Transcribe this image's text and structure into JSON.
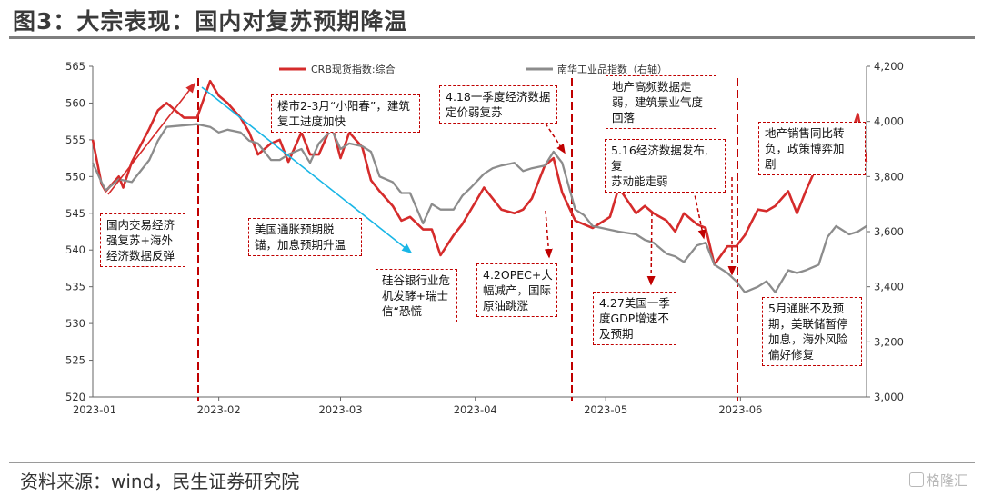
{
  "title": "图3：大宗表现：国内对复苏预期降温",
  "source": "资料来源：wind，民生证券研究院",
  "watermark": "格隆汇",
  "colors": {
    "series1": "#d52b2b",
    "series2": "#8c8c8c",
    "arrow": "#19b6e6",
    "annotation_border": "#c00000"
  },
  "chart_data": {
    "type": "line",
    "x_ticks": [
      "2023-01",
      "2023-02",
      "2023-03",
      "2023-04",
      "2023-05",
      "2023-06"
    ],
    "y_left": {
      "ticks": [
        "565",
        "560",
        "555",
        "550",
        "545",
        "540",
        "535",
        "530",
        "525",
        "520"
      ],
      "ylim": [
        520,
        565
      ]
    },
    "y_right": {
      "ticks": [
        "4,200",
        "4,000",
        "3,800",
        "3,600",
        "3,400",
        "3,200",
        "3,000"
      ],
      "ylim": [
        3000,
        4200
      ]
    },
    "legend": {
      "placement": "top",
      "items": [
        "CRB现货指数:综合",
        "南华工业品指数（右轴）"
      ]
    },
    "series": [
      {
        "name": "CRB现货指数:综合",
        "axis": "left",
        "color": "#d52b2b",
        "x": [
          "2023-01-03",
          "2023-01-05",
          "2023-01-06",
          "2023-01-09",
          "2023-01-10",
          "2023-01-12",
          "2023-01-16",
          "2023-01-18",
          "2023-01-20",
          "2023-01-24",
          "2023-01-27",
          "2023-01-30",
          "2023-02-01",
          "2023-02-03",
          "2023-02-06",
          "2023-02-08",
          "2023-02-10",
          "2023-02-13",
          "2023-02-15",
          "2023-02-17",
          "2023-02-20",
          "2023-02-22",
          "2023-02-24",
          "2023-02-27",
          "2023-03-01",
          "2023-03-03",
          "2023-03-06",
          "2023-03-08",
          "2023-03-10",
          "2023-03-13",
          "2023-03-15",
          "2023-03-17",
          "2023-03-20",
          "2023-03-22",
          "2023-03-24",
          "2023-03-27",
          "2023-03-29",
          "2023-04-03",
          "2023-04-05",
          "2023-04-07",
          "2023-04-10",
          "2023-04-12",
          "2023-04-14",
          "2023-04-17",
          "2023-04-19",
          "2023-04-21",
          "2023-04-24",
          "2023-04-26",
          "2023-04-28",
          "2023-05-02",
          "2023-05-04",
          "2023-05-08",
          "2023-05-10",
          "2023-05-12",
          "2023-05-15",
          "2023-05-17",
          "2023-05-19",
          "2023-05-22",
          "2023-05-24",
          "2023-05-26",
          "2023-05-29",
          "2023-05-31",
          "2023-06-02",
          "2023-06-05",
          "2023-06-07",
          "2023-06-09",
          "2023-06-12",
          "2023-06-14",
          "2023-06-16",
          "2023-06-19",
          "2023-06-21",
          "2023-06-23",
          "2023-06-26",
          "2023-06-28",
          "2023-06-30"
        ],
        "values": [
          555,
          549,
          548,
          550,
          548.5,
          552,
          556.5,
          559,
          560,
          558,
          558,
          563,
          561,
          560,
          558,
          556,
          553,
          554.5,
          555,
          552,
          556,
          553,
          553,
          557,
          552.5,
          556,
          554,
          549.5,
          548,
          546,
          544,
          544.5,
          542.8,
          542.8,
          539.3,
          542,
          543.5,
          548.5,
          547,
          545.5,
          545,
          545.5,
          547,
          551.5,
          552.5,
          547.8,
          544,
          543.5,
          543,
          544.5,
          548.5,
          545,
          546,
          545,
          544,
          542.5,
          545,
          543.5,
          543,
          538,
          540.5,
          540.5,
          542,
          545.5,
          545.3,
          546,
          548,
          545,
          548,
          552,
          554,
          554.5,
          555,
          558.5,
          552
        ]
      },
      {
        "name": "南华工业品指数（右轴）",
        "axis": "right",
        "color": "#8c8c8c",
        "x": [
          "2023-01-03",
          "2023-01-05",
          "2023-01-06",
          "2023-01-09",
          "2023-01-12",
          "2023-01-16",
          "2023-01-18",
          "2023-01-20",
          "2023-01-27",
          "2023-01-30",
          "2023-02-01",
          "2023-02-03",
          "2023-02-06",
          "2023-02-08",
          "2023-02-10",
          "2023-02-13",
          "2023-02-15",
          "2023-02-17",
          "2023-02-20",
          "2023-02-22",
          "2023-02-24",
          "2023-02-27",
          "2023-03-01",
          "2023-03-03",
          "2023-03-06",
          "2023-03-08",
          "2023-03-10",
          "2023-03-13",
          "2023-03-15",
          "2023-03-17",
          "2023-03-20",
          "2023-03-22",
          "2023-03-24",
          "2023-03-27",
          "2023-03-29",
          "2023-03-31",
          "2023-04-03",
          "2023-04-05",
          "2023-04-07",
          "2023-04-10",
          "2023-04-12",
          "2023-04-14",
          "2023-04-17",
          "2023-04-19",
          "2023-04-21",
          "2023-04-24",
          "2023-04-26",
          "2023-04-28",
          "2023-05-04",
          "2023-05-08",
          "2023-05-10",
          "2023-05-12",
          "2023-05-15",
          "2023-05-17",
          "2023-05-19",
          "2023-05-22",
          "2023-05-24",
          "2023-05-26",
          "2023-05-29",
          "2023-05-31",
          "2023-06-02",
          "2023-06-05",
          "2023-06-07",
          "2023-06-09",
          "2023-06-12",
          "2023-06-14",
          "2023-06-16",
          "2023-06-19",
          "2023-06-21",
          "2023-06-23",
          "2023-06-26",
          "2023-06-28",
          "2023-06-30"
        ],
        "values": [
          3850,
          3780,
          3750,
          3790,
          3780,
          3860,
          3930,
          3980,
          3990,
          3980,
          3960,
          3970,
          3960,
          3930,
          3920,
          3860,
          3860,
          3880,
          3900,
          3850,
          3920,
          3970,
          3900,
          3920,
          3910,
          3890,
          3800,
          3780,
          3740,
          3740,
          3630,
          3700,
          3680,
          3680,
          3730,
          3760,
          3810,
          3830,
          3840,
          3850,
          3820,
          3830,
          3840,
          3890,
          3850,
          3680,
          3660,
          3620,
          3600,
          3590,
          3570,
          3560,
          3520,
          3510,
          3490,
          3550,
          3560,
          3480,
          3450,
          3420,
          3380,
          3400,
          3420,
          3380,
          3460,
          3450,
          3460,
          3480,
          3580,
          3620,
          3590,
          3600,
          3620
        ]
      }
    ]
  },
  "annotations": [
    {
      "id": "a1",
      "text": "国内交易经济\n强复苏+海外\n经济数据反弹"
    },
    {
      "id": "a2",
      "text": "楼市2-3月“小阳春”，建筑\n复工进度加快"
    },
    {
      "id": "a3",
      "text": "美国通胀预期脱\n锚，加息预期升温"
    },
    {
      "id": "a4",
      "text": "硅谷银行业危\n机发酵+瑞士\n信“恐慌"
    },
    {
      "id": "a5",
      "text": "4.18一季度经济数据\n定价弱复苏"
    },
    {
      "id": "a6",
      "text": "4.2OPEC+大\n幅减产，国际\n原油跳涨"
    },
    {
      "id": "a7",
      "text": "地产高频数据走\n弱，建筑景业气度\n回落"
    },
    {
      "id": "a8",
      "text": "5.16经济数据发布,复\n苏动能走弱"
    },
    {
      "id": "a9",
      "text": "4.27美国一季\n度GDP增速不\n及预期"
    },
    {
      "id": "a10",
      "text": "地产销售同比转\n负，政策博弈加\n剧"
    },
    {
      "id": "a11",
      "text": "5月通胀不及预\n期，美联储暂停\n加息，海外风险\n偏好修复"
    }
  ]
}
